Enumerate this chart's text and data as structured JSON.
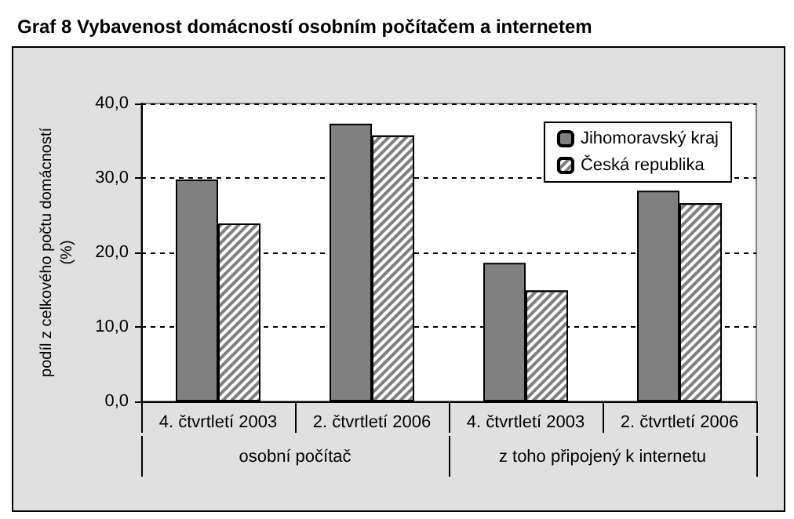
{
  "chart_data": {
    "type": "bar",
    "title": "Graf 8 Vybavenost domácností osobním počítačem a internetem",
    "ylabel": "podíl z celkového počtu domácností (%)",
    "categories": [
      "4. čtvrtletí 2003",
      "2. čtvrtletí 2006",
      "4. čtvrtletí 2003",
      "2. čtvrtletí 2006"
    ],
    "annotations": [
      "osobní počítač",
      "z toho připojený k internetu"
    ],
    "series": [
      {
        "name": "Jihomoravský kraj",
        "color": "#808080",
        "values": [
          29.8,
          37.3,
          18.6,
          28.3
        ]
      },
      {
        "name": "Česká republika",
        "color": "#ffffff",
        "values": [
          23.9,
          35.7,
          14.9,
          26.6
        ]
      }
    ],
    "ylim": [
      0,
      40
    ],
    "yticks": [
      {
        "value": 0,
        "label": "0,0"
      },
      {
        "value": 10,
        "label": "10,0"
      },
      {
        "value": 20,
        "label": "20,0"
      },
      {
        "value": 30,
        "label": "30,0"
      },
      {
        "value": 40,
        "label": "40,0"
      }
    ],
    "grid": "y",
    "legend": "top right"
  }
}
